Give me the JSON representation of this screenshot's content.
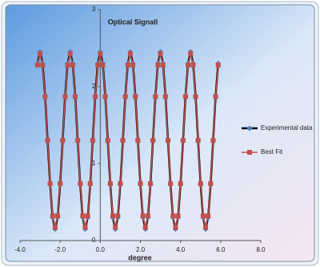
{
  "chart_data": {
    "type": "scatter-line",
    "title": "Optical Signall",
    "x_label": "degree",
    "x": [
      -3.125,
      -3,
      -2.875,
      -2.75,
      -2.625,
      -2.5,
      -2.375,
      -2.25,
      -2.125,
      -2,
      -1.875,
      -1.75,
      -1.625,
      -1.5,
      -1.375,
      -1.25,
      -1.125,
      -1,
      -0.875,
      -0.75,
      -0.625,
      -0.5,
      -0.375,
      -0.25,
      -0.125,
      0,
      0.125,
      0.25,
      0.375,
      0.5,
      0.625,
      0.75,
      0.875,
      1,
      1.125,
      1.25,
      1.375,
      1.5,
      1.625,
      1.75,
      1.875,
      2,
      2.125,
      2.25,
      2.375,
      2.5,
      2.625,
      2.75,
      2.875,
      3,
      3.125,
      3.25,
      3.375,
      3.5,
      3.625,
      3.75,
      3.875,
      4,
      4.125,
      4.25,
      4.375,
      4.5,
      4.625,
      4.75,
      4.875,
      5,
      5.125,
      5.25,
      5.375,
      5.5,
      5.625,
      5.75,
      5.875
    ],
    "series": [
      {
        "name": "Experimental data",
        "color": "#000000",
        "marker_color": "#4a7ebb",
        "marker": "diamond",
        "values": [
          2.3,
          2.45,
          2.3,
          1.88,
          1.3,
          0.73,
          0.3,
          0.15,
          0.3,
          0.73,
          1.3,
          1.88,
          2.3,
          2.45,
          2.3,
          1.88,
          1.3,
          0.73,
          0.3,
          0.15,
          0.3,
          0.73,
          1.3,
          1.88,
          2.3,
          2.45,
          2.3,
          1.88,
          1.3,
          0.73,
          0.3,
          0.15,
          0.3,
          0.73,
          1.3,
          1.88,
          2.3,
          2.45,
          2.3,
          1.88,
          1.3,
          0.73,
          0.3,
          0.15,
          0.3,
          0.73,
          1.3,
          1.88,
          2.3,
          2.45,
          2.3,
          1.88,
          1.3,
          0.73,
          0.3,
          0.15,
          0.3,
          0.73,
          1.3,
          1.88,
          2.3,
          2.45,
          2.3,
          1.88,
          1.3,
          0.73,
          0.3,
          0.15,
          0.3,
          0.73,
          1.3,
          1.88,
          2.3
        ]
      },
      {
        "name": "Best Fit",
        "color": "#c0504d",
        "marker_color": "#c0504d",
        "marker": "square",
        "values": [
          2.28,
          2.43,
          2.28,
          1.87,
          1.3,
          0.74,
          0.32,
          0.17,
          0.32,
          0.74,
          1.3,
          1.87,
          2.28,
          2.43,
          2.28,
          1.87,
          1.3,
          0.74,
          0.32,
          0.17,
          0.32,
          0.74,
          1.3,
          1.87,
          2.28,
          2.43,
          2.28,
          1.87,
          1.3,
          0.74,
          0.32,
          0.17,
          0.32,
          0.74,
          1.3,
          1.87,
          2.28,
          2.43,
          2.28,
          1.87,
          1.3,
          0.74,
          0.32,
          0.17,
          0.32,
          0.74,
          1.3,
          1.87,
          2.28,
          2.43,
          2.28,
          1.87,
          1.3,
          0.74,
          0.32,
          0.17,
          0.32,
          0.74,
          1.3,
          1.87,
          2.28,
          2.43,
          2.28,
          1.87,
          1.3,
          0.74,
          0.32,
          0.17,
          0.32,
          0.74,
          1.3,
          1.87,
          2.28
        ]
      }
    ],
    "xlim": [
      -4,
      8
    ],
    "ylim": [
      0,
      3
    ],
    "xticks": [
      {
        "value": -4,
        "label": "-4.0"
      },
      {
        "value": -2,
        "label": "-2.0"
      },
      {
        "value": 0,
        "label": "0.0"
      },
      {
        "value": 2,
        "label": "2.0"
      },
      {
        "value": 4,
        "label": "4.0"
      },
      {
        "value": 6,
        "label": "6.0"
      },
      {
        "value": 8,
        "label": "8.0"
      }
    ],
    "yticks": [
      0,
      1,
      2,
      3
    ],
    "legend": "right"
  }
}
